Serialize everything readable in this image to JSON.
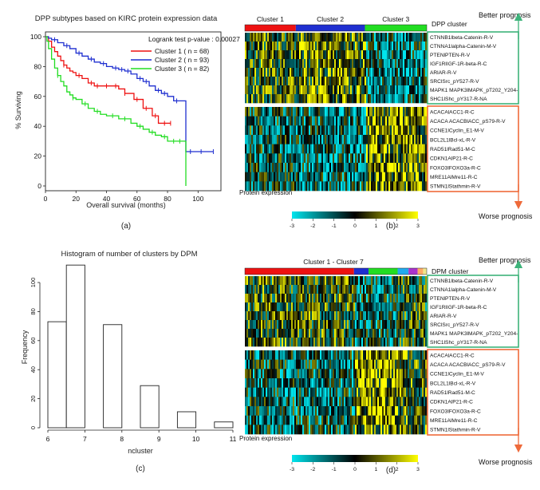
{
  "panel_labels": [
    "(a)",
    "(b)",
    "(c)",
    "(d)"
  ],
  "colors": {
    "cluster1": "#ee1111",
    "cluster2": "#1f2fd0",
    "cluster3": "#22dd22",
    "better_box": "#3db37a",
    "worse_box": "#ee6a3a",
    "heat_low": "#00e5ee",
    "heat_mid": "#000000",
    "heat_high": "#ffff00"
  },
  "chart_data": [
    {
      "type": "line",
      "title": "DPP subtypes based on KIRC protein expression data",
      "xlabel": "Overall survival (months)",
      "ylabel": "% Surviving",
      "xlim": [
        0,
        115
      ],
      "ylim": [
        0,
        100
      ],
      "xticks": [
        0,
        20,
        40,
        60,
        80,
        100
      ],
      "yticks": [
        0,
        20,
        40,
        60,
        80,
        100
      ],
      "annotation": "Logrank test p-value : 0.00027",
      "legend": [
        "Cluster 1   ( n = 68)",
        "Cluster 2   ( n = 93)",
        "Cluster 3   ( n = 82)"
      ],
      "legend_position": "top-right",
      "series": [
        {
          "name": "Cluster 1",
          "color": "#ee1111",
          "x": [
            0,
            2,
            4,
            6,
            8,
            10,
            12,
            14,
            16,
            18,
            20,
            24,
            28,
            32,
            36,
            44,
            48,
            52,
            58,
            64,
            70,
            74,
            82
          ],
          "y": [
            100,
            97,
            93,
            90,
            87,
            84,
            81,
            79,
            77,
            76,
            74,
            72,
            69,
            67,
            67,
            67,
            65,
            62,
            58,
            52,
            47,
            42,
            42
          ],
          "censor_x": [
            12,
            22,
            30,
            34,
            40,
            46,
            52,
            60,
            66,
            72,
            78,
            82
          ]
        },
        {
          "name": "Cluster 2",
          "color": "#1f2fd0",
          "x": [
            0,
            2,
            4,
            8,
            12,
            16,
            20,
            24,
            28,
            32,
            36,
            40,
            44,
            48,
            52,
            56,
            60,
            64,
            68,
            72,
            76,
            80,
            84,
            88,
            92,
            100,
            110
          ],
          "y": [
            100,
            99,
            98,
            96,
            94,
            92,
            89,
            87,
            85,
            83,
            82,
            80,
            79,
            78,
            77,
            75,
            72,
            70,
            67,
            64,
            62,
            60,
            57,
            57,
            23,
            23,
            23
          ],
          "censor_x": [
            6,
            14,
            22,
            30,
            38,
            46,
            50,
            54,
            62,
            66,
            74,
            78,
            86,
            95,
            102,
            110
          ]
        },
        {
          "name": "Cluster 3",
          "color": "#22dd22",
          "x": [
            0,
            1,
            2,
            4,
            6,
            8,
            10,
            12,
            14,
            16,
            18,
            20,
            24,
            28,
            32,
            36,
            40,
            48,
            56,
            60,
            64,
            68,
            72,
            76,
            80,
            84,
            88,
            90,
            92
          ],
          "y": [
            100,
            97,
            92,
            85,
            79,
            74,
            70,
            67,
            63,
            61,
            59,
            58,
            55,
            52,
            50,
            48,
            47,
            45,
            42,
            40,
            38,
            36,
            34,
            33,
            30,
            30,
            30,
            30,
            0
          ],
          "censor_x": [
            8,
            18,
            26,
            34,
            44,
            52,
            62,
            70,
            78,
            84,
            88
          ]
        }
      ]
    },
    {
      "type": "heatmap",
      "header_label": "DPP cluster",
      "cluster_labels": [
        "Cluster 1",
        "Cluster 2",
        "Cluster 3"
      ],
      "cluster_fractions": [
        0.28,
        0.38,
        0.34
      ],
      "better_label": "Better prognosis",
      "worse_label": "Worse prognosis",
      "rows_better": [
        "CTNNB1lbeta-Catenin-R-V",
        "CTNNA1lalpha-Catenin-M-V",
        "PTENlPTEN-R-V",
        "IGF1RlIGF-1R-beta-R-C",
        "ARlAR-R-V",
        "SRClSrc_pY527-R-V",
        "MAPK1 MAPK3lMAPK_pT202_Y204-",
        "SHC1lShc_pY317-R-NA"
      ],
      "rows_worse": [
        "ACACAlACC1-R-C",
        "ACACA ACACBlACC_pS79-R-V",
        "CCNE1lCyclin_E1-M-V",
        "BCL2L1lBcl-xL-R-V",
        "RAD51lRad51-M-C",
        "CDKN1AlP21-R-C",
        "FOXO3lFOXO3a-R-C",
        "MRE11AlMre11-R-C",
        "STMN1lStathmin-R-V"
      ],
      "colorbar_label": "Protein expression",
      "colorbar_ticks": [
        "-3",
        "-2",
        "-1",
        "0",
        "1",
        "2",
        "3"
      ]
    },
    {
      "type": "bar",
      "title": "Histogram of number of clusters by DPM",
      "xlabel": "ncluster",
      "ylabel": "Frequency",
      "categories": [
        "6",
        "7",
        "8",
        "9",
        "10",
        "11"
      ],
      "bins": [
        [
          6,
          6.5
        ],
        [
          6.5,
          7
        ],
        [
          7.5,
          8
        ],
        [
          8.5,
          9
        ],
        [
          9.5,
          10
        ],
        [
          10.5,
          11
        ]
      ],
      "values": [
        73,
        112,
        71,
        29,
        11,
        4
      ],
      "xlim": [
        6,
        11
      ],
      "ylim": [
        0,
        100
      ],
      "xticks": [
        "6",
        "7",
        "8",
        "9",
        "10",
        "11"
      ],
      "yticks": [
        "0",
        "20",
        "40",
        "60",
        "80",
        "100"
      ]
    },
    {
      "type": "heatmap",
      "header_label": "DPM cluster",
      "cluster_title": "Cluster 1 - Cluster 7",
      "cluster_colors": [
        "#ee1111",
        "#1f2fd0",
        "#22dd22",
        "#22aaee",
        "#aa33cc",
        "#ffaa66",
        "#f0e68c"
      ],
      "cluster_fractions": [
        0.6,
        0.08,
        0.16,
        0.06,
        0.05,
        0.03,
        0.02
      ],
      "better_label": "Better prognosis",
      "worse_label": "Worse prognosis",
      "rows_better": [
        "CTNNB1lbeta-Catenin-R-V",
        "CTNNA1lalpha-Catenin-M-V",
        "PTENlPTEN-R-V",
        "IGF1RlIGF-1R-beta-R-C",
        "ARlAR-R-V",
        "SRClSrc_pY527-R-V",
        "MAPK1 MAPK3lMAPK_pT202_Y204-",
        "SHC1lShc_pY317-R-NA"
      ],
      "rows_worse": [
        "ACACAlACC1-R-C",
        "ACACA ACACBlACC_pS79-R-V",
        "CCNE1lCyclin_E1-M-V",
        "BCL2L1lBcl-xL-R-V",
        "RAD51lRad51-M-C",
        "CDKN1AlP21-R-C",
        "FOXO3lFOXO3a-R-C",
        "MRE11AlMre11-R-C",
        "STMN1lStathmin-R-V"
      ],
      "colorbar_label": "Protein expression",
      "colorbar_ticks": [
        "-3",
        "-2",
        "-1",
        "0",
        "1",
        "2",
        "3"
      ]
    }
  ]
}
